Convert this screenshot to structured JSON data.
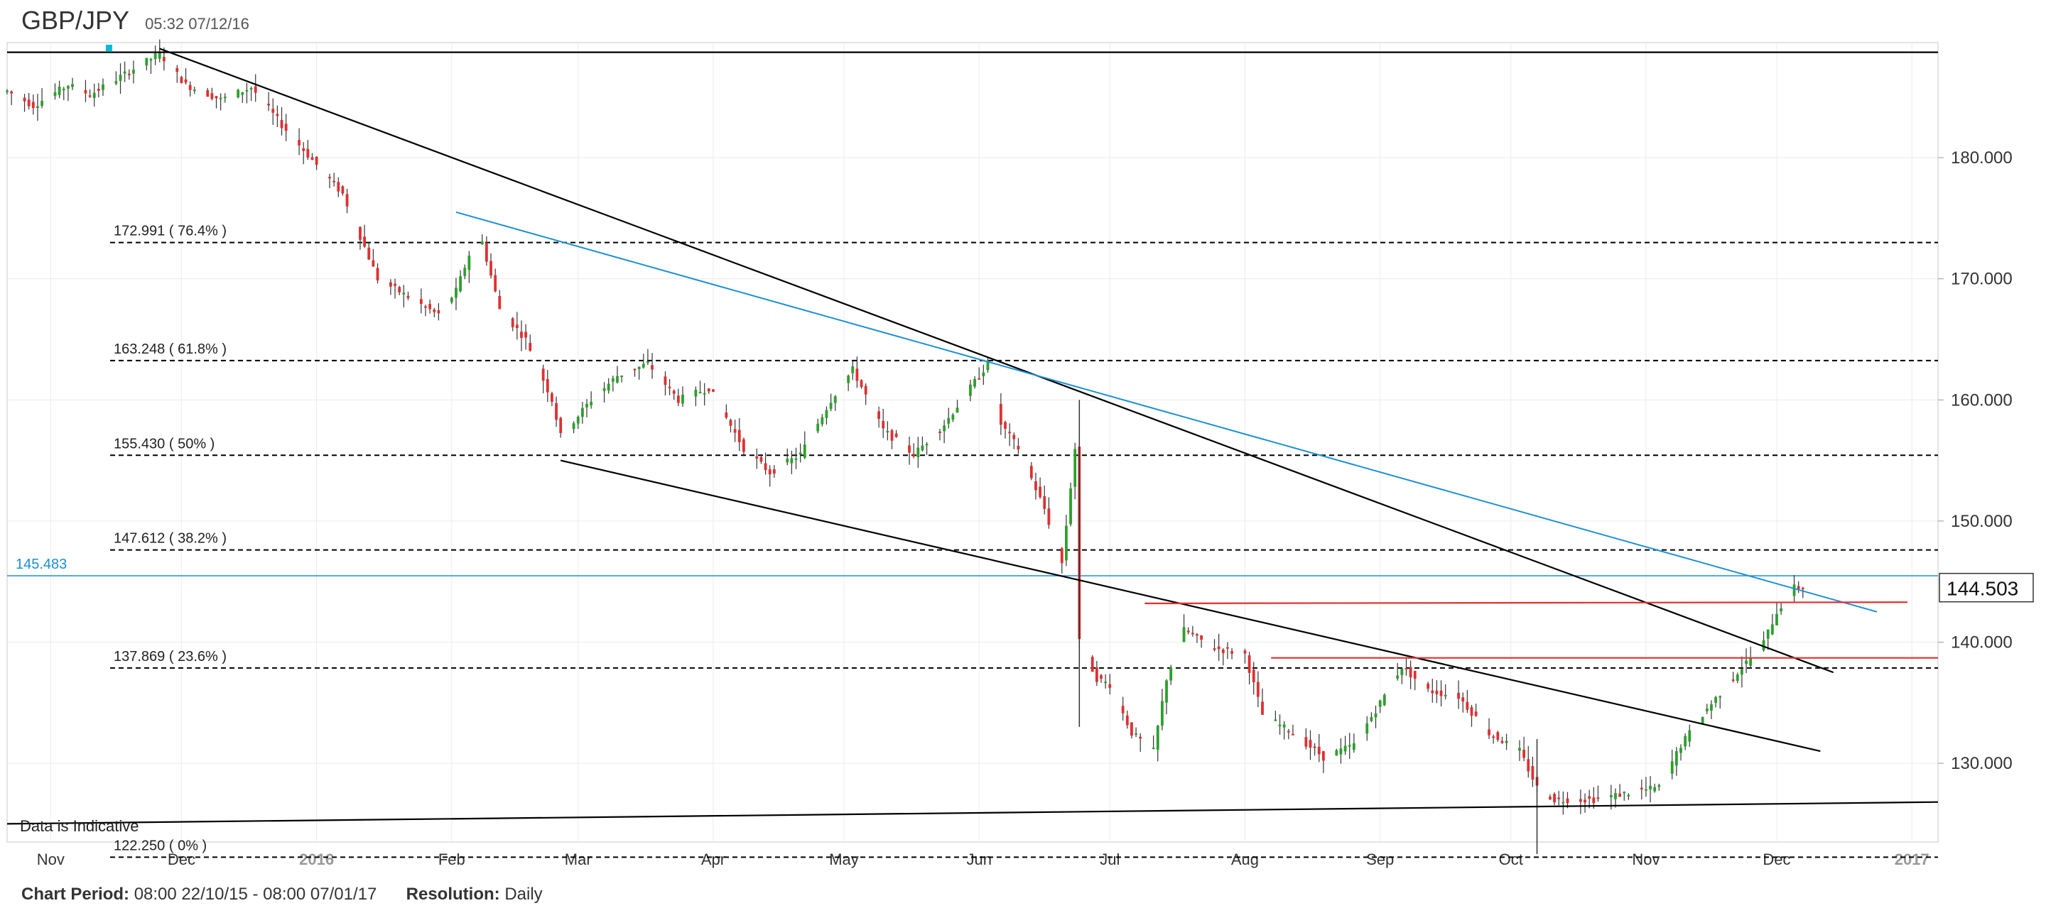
{
  "header": {
    "symbol": "GBP/JPY",
    "timestamp": "05:32 07/12/16"
  },
  "footer": {
    "period_label": "Chart Period:",
    "period_value": "08:00 22/10/15 - 08:00 07/01/17",
    "resolution_label": "Resolution:",
    "resolution_value": "Daily"
  },
  "chart_data": {
    "type": "candlestick",
    "title": "GBP/JPY",
    "ylim": [
      123.5,
      189.5
    ],
    "y_ticks": [
      "180.000",
      "170.000",
      "160.000",
      "150.000",
      "140.000",
      "130.000"
    ],
    "x_tick_labels": [
      "Nov",
      "Dec",
      "2016",
      "Feb",
      "Mar",
      "Apr",
      "May",
      "Jun",
      "Jul",
      "Aug",
      "Sep",
      "Oct",
      "Nov",
      "Dec",
      "2017"
    ],
    "x_range": [
      "2015-10-22",
      "2017-01-07"
    ],
    "grid": true,
    "current_price": "144.503",
    "crosshair_price": "145.483",
    "note": "Data is Indicative",
    "colors": {
      "up": "#2ca02c",
      "down": "#e03030",
      "fib": "#000000",
      "channel": "#000000",
      "blue_trend": "#1a8fd8",
      "support": "#e03030"
    },
    "fib_levels": [
      {
        "label": "172.991 ( 76.4% )",
        "value": 172.991
      },
      {
        "label": "163.248 ( 61.8% )",
        "value": 163.248
      },
      {
        "label": "155.430 ( 50% )",
        "value": 155.43
      },
      {
        "label": "147.612 ( 38.2% )",
        "value": 147.612
      },
      {
        "label": "137.869 ( 23.6% )",
        "value": 137.869
      },
      {
        "label": "122.250 ( 0% )",
        "value": 122.25
      }
    ],
    "price_path": [
      [
        "2015-10-22",
        185.5
      ],
      [
        "2015-10-28",
        184.3
      ],
      [
        "2015-11-05",
        186.0
      ],
      [
        "2015-11-10",
        185.2
      ],
      [
        "2015-11-18",
        186.9
      ],
      [
        "2015-11-26",
        188.6
      ],
      [
        "2015-12-02",
        186.0
      ],
      [
        "2015-12-10",
        184.8
      ],
      [
        "2015-12-17",
        185.8
      ],
      [
        "2015-12-24",
        182.7
      ],
      [
        "2015-12-31",
        179.8
      ],
      [
        "2016-01-07",
        177.0
      ],
      [
        "2016-01-15",
        170.0
      ],
      [
        "2016-01-22",
        168.5
      ],
      [
        "2016-01-29",
        167.0
      ],
      [
        "2016-02-02",
        169.0
      ],
      [
        "2016-02-05",
        172.0
      ],
      [
        "2016-02-08",
        173.0
      ],
      [
        "2016-02-12",
        167.5
      ],
      [
        "2016-02-18",
        165.0
      ],
      [
        "2016-02-24",
        160.0
      ],
      [
        "2016-02-26",
        157.0
      ],
      [
        "2016-03-04",
        160.0
      ],
      [
        "2016-03-10",
        162.0
      ],
      [
        "2016-03-17",
        163.0
      ],
      [
        "2016-03-24",
        160.0
      ],
      [
        "2016-03-31",
        161.0
      ],
      [
        "2016-04-08",
        156.0
      ],
      [
        "2016-04-14",
        154.0
      ],
      [
        "2016-04-21",
        155.5
      ],
      [
        "2016-04-28",
        160.0
      ],
      [
        "2016-05-03",
        162.5
      ],
      [
        "2016-05-10",
        157.5
      ],
      [
        "2016-05-17",
        155.5
      ],
      [
        "2016-05-24",
        158.0
      ],
      [
        "2016-05-31",
        161.5
      ],
      [
        "2016-06-03",
        163.0
      ],
      [
        "2016-06-06",
        158.0
      ],
      [
        "2016-06-10",
        156.0
      ],
      [
        "2016-06-16",
        151.0
      ],
      [
        "2016-06-20",
        146.5
      ],
      [
        "2016-06-23",
        156.0
      ],
      [
        "2016-06-24",
        140.0
      ],
      [
        "2016-06-28",
        137.0
      ],
      [
        "2016-07-01",
        136.5
      ],
      [
        "2016-07-06",
        132.5
      ],
      [
        "2016-07-11",
        131.0
      ],
      [
        "2016-07-14",
        137.0
      ],
      [
        "2016-07-18",
        141.0
      ],
      [
        "2016-07-25",
        139.5
      ],
      [
        "2016-08-01",
        139.0
      ],
      [
        "2016-08-05",
        134.0
      ],
      [
        "2016-08-12",
        132.5
      ],
      [
        "2016-08-19",
        130.5
      ],
      [
        "2016-08-26",
        131.5
      ],
      [
        "2016-09-01",
        135.0
      ],
      [
        "2016-09-06",
        138.0
      ],
      [
        "2016-09-12",
        136.0
      ],
      [
        "2016-09-19",
        135.5
      ],
      [
        "2016-09-26",
        132.5
      ],
      [
        "2016-10-03",
        131.0
      ],
      [
        "2016-10-07",
        128.0
      ],
      [
        "2016-10-11",
        127.0
      ],
      [
        "2016-10-20",
        127.0
      ],
      [
        "2016-10-27",
        127.5
      ],
      [
        "2016-11-04",
        128.0
      ],
      [
        "2016-11-09",
        131.5
      ],
      [
        "2016-11-15",
        134.5
      ],
      [
        "2016-11-22",
        137.5
      ],
      [
        "2016-11-28",
        140.0
      ],
      [
        "2016-12-01",
        142.5
      ],
      [
        "2016-12-05",
        144.5
      ],
      [
        "2016-12-07",
        144.5
      ]
    ],
    "events": [
      {
        "date": "2016-06-24",
        "low": 133.0,
        "high": 160.0
      },
      {
        "date": "2016-10-07",
        "low": 122.5,
        "high": 132.0
      }
    ],
    "trendlines": [
      {
        "color": "black",
        "from": [
          "2015-11-26",
          189.0
        ],
        "to": [
          "2016-12-14",
          137.5
        ]
      },
      {
        "color": "black",
        "from": [
          "2016-02-26",
          155.0
        ],
        "to": [
          "2016-12-11",
          131.0
        ]
      },
      {
        "color": "blue",
        "from": [
          "2016-02-02",
          175.5
        ],
        "to": [
          "2016-12-24",
          142.5
        ]
      },
      {
        "color": "black",
        "from": [
          "2015-10-22",
          188.7
        ],
        "to": [
          "2017-01-07",
          188.7
        ]
      },
      {
        "color": "black",
        "from": [
          "2015-10-22",
          125.0
        ],
        "to": [
          "2017-01-07",
          126.8
        ]
      },
      {
        "color": "red",
        "from": [
          "2016-07-09",
          143.2
        ],
        "to": [
          "2016-12-31",
          143.3
        ]
      },
      {
        "color": "red",
        "from": [
          "2016-08-07",
          138.7
        ],
        "to": [
          "2017-01-07",
          138.7
        ]
      }
    ]
  }
}
